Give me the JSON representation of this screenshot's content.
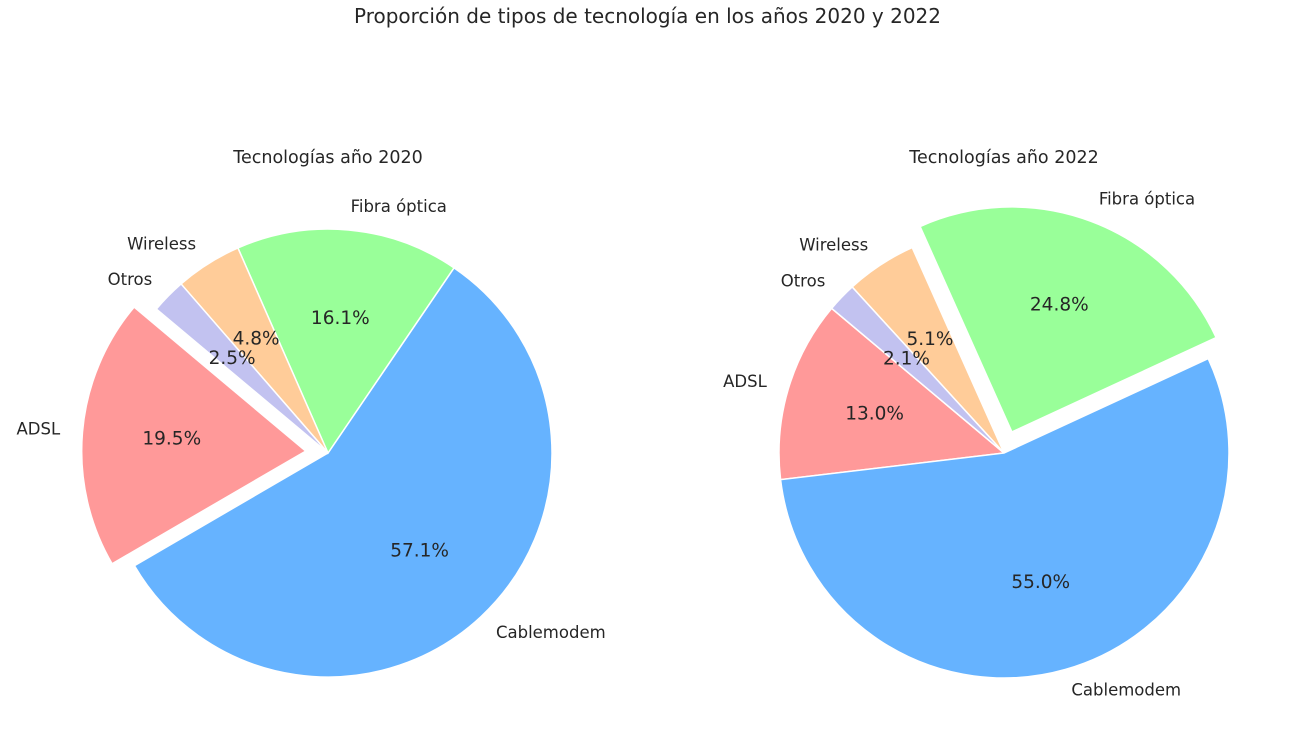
{
  "suptitle": "Proporción de tipos de tecnología en los años 2020 y 2022",
  "chart_data": [
    {
      "type": "pie",
      "title": "Tecnologías año 2020",
      "labels": [
        "ADSL",
        "Cablemodem",
        "Fibra óptica",
        "Wireless",
        "Otros"
      ],
      "values": [
        19.5,
        57.1,
        16.1,
        4.8,
        2.5
      ],
      "value_labels": [
        "19.5%",
        "57.1%",
        "16.1%",
        "4.8%",
        "2.5%"
      ],
      "colors": [
        "#ff9999",
        "#66b3ff",
        "#99ff99",
        "#ffcc99",
        "#c2c2f0"
      ],
      "exploded": [
        "ADSL"
      ]
    },
    {
      "type": "pie",
      "title": "Tecnologías año 2022",
      "labels": [
        "ADSL",
        "Cablemodem",
        "Fibra óptica",
        "Wireless",
        "Otros"
      ],
      "values": [
        13.0,
        55.0,
        24.8,
        5.1,
        2.1
      ],
      "value_labels": [
        "13.0%",
        "55.0%",
        "24.8%",
        "5.1%",
        "2.1%"
      ],
      "colors": [
        "#ff9999",
        "#66b3ff",
        "#99ff99",
        "#ffcc99",
        "#c2c2f0"
      ],
      "exploded": [
        "Fibra óptica"
      ]
    }
  ]
}
